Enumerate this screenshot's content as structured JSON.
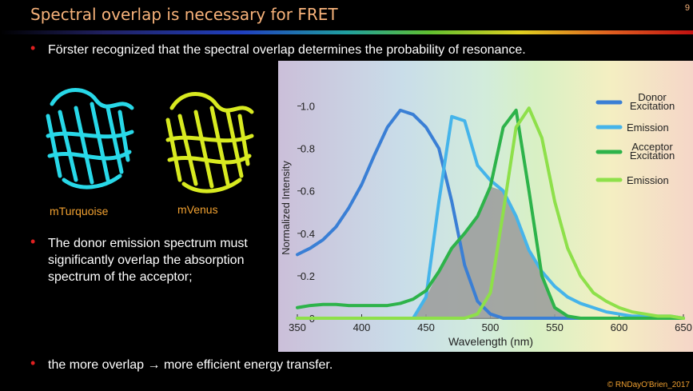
{
  "header": {
    "title": "Spectral overlap is necessary for FRET",
    "page_number": "9"
  },
  "bullets": [
    "Förster recognized that the spectral overlap determines the probability of resonance.",
    "The donor emission spectrum must significantly overlap the absorption spectrum of the acceptor;",
    "the more overlap → more efficient energy transfer."
  ],
  "images": [
    {
      "label": "mTurquoise"
    },
    {
      "label": "mVenus"
    }
  ],
  "footer": "© RNDayO'Brien_2017",
  "chart_data": {
    "type": "line",
    "x_label": "Wavelength (nm)",
    "y_label": "Normalized Intensity",
    "x": [
      350,
      360,
      370,
      380,
      390,
      400,
      410,
      420,
      430,
      440,
      450,
      460,
      470,
      480,
      490,
      500,
      510,
      520,
      530,
      540,
      550,
      560,
      570,
      580,
      590,
      600,
      610,
      620,
      630,
      640,
      650
    ],
    "series": [
      {
        "name": "Donor Excitation",
        "color": "#3a7fd5",
        "values": [
          0.3,
          0.33,
          0.37,
          0.43,
          0.52,
          0.63,
          0.77,
          0.9,
          0.98,
          0.96,
          0.9,
          0.8,
          0.55,
          0.25,
          0.08,
          0.02,
          0,
          0,
          0,
          0,
          0,
          0,
          0,
          0,
          0,
          0,
          0,
          0,
          0,
          0,
          0
        ]
      },
      {
        "name": "Emission",
        "color": "#45b4ea",
        "values": [
          0,
          0,
          0,
          0,
          0,
          0,
          0,
          0,
          0,
          0,
          0.1,
          0.55,
          0.95,
          0.93,
          0.72,
          0.65,
          0.6,
          0.48,
          0.32,
          0.22,
          0.15,
          0.1,
          0.07,
          0.05,
          0.03,
          0.02,
          0.01,
          0.01,
          0.01,
          0.01,
          0
        ]
      },
      {
        "name": "Acceptor Excitation",
        "color": "#2db34a",
        "values": [
          0.05,
          0.06,
          0.065,
          0.065,
          0.06,
          0.06,
          0.06,
          0.06,
          0.07,
          0.09,
          0.13,
          0.22,
          0.33,
          0.4,
          0.48,
          0.62,
          0.9,
          0.98,
          0.6,
          0.2,
          0.05,
          0.01,
          0,
          0,
          0,
          0,
          0,
          0,
          0,
          0,
          0
        ]
      },
      {
        "name": "Emission",
        "color": "#8ee04a",
        "values": [
          0,
          0,
          0,
          0,
          0,
          0,
          0,
          0,
          0,
          0,
          0,
          0,
          0,
          0,
          0.02,
          0.12,
          0.5,
          0.9,
          0.99,
          0.85,
          0.55,
          0.33,
          0.2,
          0.12,
          0.08,
          0.05,
          0.03,
          0.02,
          0.01,
          0.01,
          0
        ]
      }
    ],
    "overlap_color": "#9a9a9a",
    "xlim": [
      350,
      650
    ],
    "xticks": [
      350,
      400,
      450,
      500,
      550,
      600,
      650
    ],
    "ylim": [
      0,
      1.1
    ],
    "yticks": [
      0,
      0.2,
      0.4,
      0.6,
      0.8,
      {
        "value": 1,
        "label": "1.0"
      }
    ],
    "legend": "upper right"
  }
}
